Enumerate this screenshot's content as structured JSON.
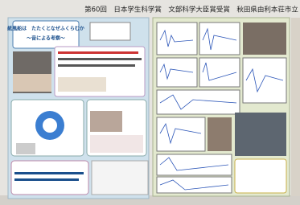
{
  "banner": {
    "text": "第60回　日本学生科学賞　文部科学大臣賞受賞　秋田県由利本荘市立"
  },
  "left_poster": {
    "title_line1": "紙風船は　たたくとなぜふくらむか",
    "title_line2": "～音による考察～"
  }
}
